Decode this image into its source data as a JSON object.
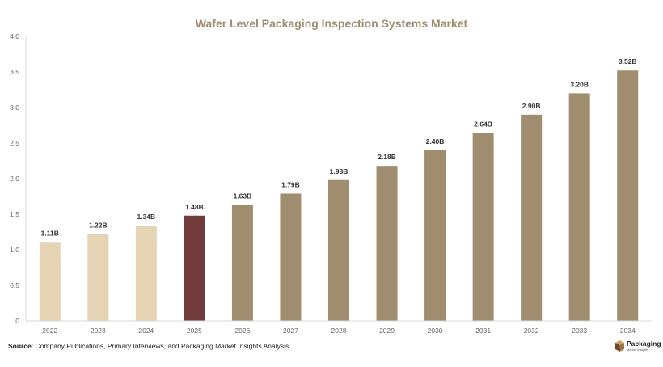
{
  "chart_data": {
    "type": "bar",
    "title": "Wafer Level Packaging Inspection Systems Market",
    "categories": [
      "2022",
      "2023",
      "2024",
      "2025",
      "2026",
      "2027",
      "2028",
      "2029",
      "2030",
      "2031",
      "2032",
      "2033",
      "2034"
    ],
    "values": [
      1.11,
      1.22,
      1.34,
      1.48,
      1.63,
      1.79,
      1.98,
      2.18,
      2.4,
      2.64,
      2.9,
      3.2,
      3.52
    ],
    "data_labels": [
      "1.11B",
      "1.22B",
      "1.34B",
      "1.48B",
      "1.63B",
      "1.79B",
      "1.98B",
      "2.18B",
      "2.40B",
      "2.64B",
      "2.90B",
      "3.20B",
      "3.52B"
    ],
    "bar_colors": [
      "#e6d3b3",
      "#e6d3b3",
      "#e6d3b3",
      "#723b3b",
      "#a08c6e",
      "#a08c6e",
      "#a08c6e",
      "#a08c6e",
      "#a08c6e",
      "#a08c6e",
      "#a08c6e",
      "#a08c6e",
      "#a08c6e"
    ],
    "ylim": [
      0,
      4.0
    ],
    "yticks": [
      0,
      0.5,
      1.0,
      1.5,
      2.0,
      2.5,
      3.0,
      3.5,
      4.0
    ],
    "ytick_labels": [
      "0",
      "0.5",
      "1.0",
      "1.5",
      "2.0",
      "2.5",
      "3.0",
      "3.5",
      "4.0"
    ],
    "xlabel": "",
    "ylabel": "",
    "grid": false,
    "legend": "none"
  },
  "footer": {
    "source_label": "Source",
    "source_text": ": Company Publications, Primary Interviews, and Packaging Market Insights Analysis"
  },
  "logo": {
    "line1": "Packaging",
    "line2": "Market Insights",
    "icon": "box-icon",
    "colors": [
      "#c8a56a",
      "#6b4a2a"
    ]
  }
}
